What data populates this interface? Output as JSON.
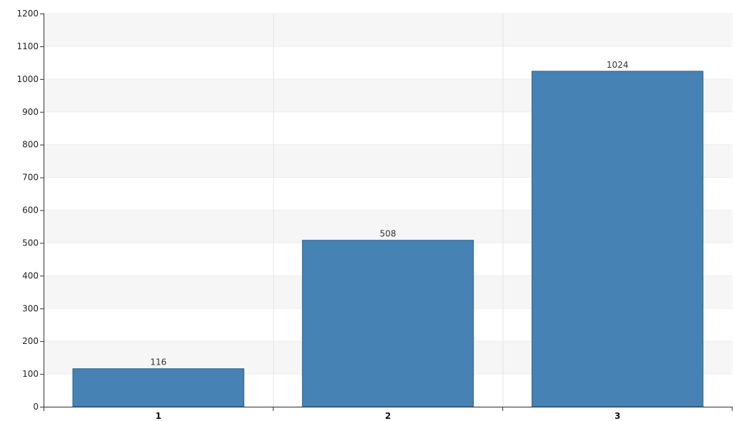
{
  "chart_data": {
    "type": "bar",
    "categories": [
      "1",
      "2",
      "3"
    ],
    "values": [
      116,
      508,
      1024
    ],
    "data_labels": [
      "116",
      "508",
      "1024"
    ],
    "title": "",
    "xlabel": "",
    "ylabel": "",
    "ylim": [
      0,
      1200
    ],
    "y_ticks": [
      "0",
      "100",
      "200",
      "300",
      "400",
      "500",
      "600",
      "700",
      "800",
      "900",
      "1000",
      "1100",
      "1200"
    ],
    "grid": true,
    "legend": "none",
    "bar_color": "#4682b4",
    "bar_border_color": "#2f5f86",
    "band_color": "#f6f6f6"
  }
}
